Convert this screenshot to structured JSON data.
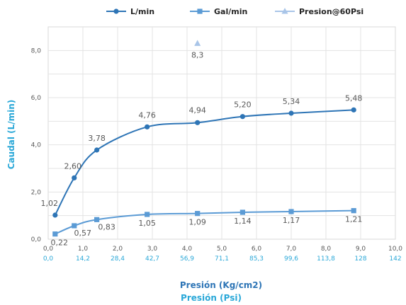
{
  "chart_data": {
    "type": "line",
    "legend": [
      "L/min",
      "Gal/min",
      "Presion@60Psi"
    ],
    "legend_position": "top",
    "xlabel": "Presión (Kg/cm2)",
    "xlabel2": "Presión (Psi)",
    "ylabel": "Caudal (L/min)",
    "xlim": [
      0,
      10
    ],
    "ylim": [
      0,
      9
    ],
    "grid": true,
    "x_ticks": [
      "0,0",
      "1,0",
      "2,0",
      "3,0",
      "4,0",
      "5,0",
      "6,0",
      "7,0",
      "8,0",
      "9,0",
      "10,0"
    ],
    "x2_ticks": [
      "0,0",
      "14,2",
      "28,4",
      "42,7",
      "56,9",
      "71,1",
      "85,3",
      "99,6",
      "113,8",
      "128",
      "142"
    ],
    "y_ticks": [
      "0,0",
      "2,0",
      "4,0",
      "6,0",
      "8,0"
    ],
    "series": [
      {
        "name": "L/min",
        "color": "#2e75b6",
        "marker": "circle",
        "x": [
          0.2,
          0.75,
          1.4,
          2.85,
          4.3,
          5.6,
          7.0,
          8.8
        ],
        "values": [
          1.02,
          2.6,
          3.78,
          4.76,
          4.94,
          5.2,
          5.34,
          5.48
        ],
        "labels": [
          "1,02",
          "2,60",
          "3,78",
          "4,76",
          "4,94",
          "5,20",
          "5,34",
          "5,48"
        ]
      },
      {
        "name": "Gal/min",
        "color": "#5b9bd5",
        "marker": "square",
        "x": [
          0.2,
          0.75,
          1.4,
          2.85,
          4.3,
          5.6,
          7.0,
          8.8
        ],
        "values": [
          0.22,
          0.57,
          0.83,
          1.05,
          1.09,
          1.14,
          1.17,
          1.21
        ],
        "labels": [
          "0,22",
          "0,57",
          "0,83",
          "1,05",
          "1,09",
          "1,14",
          "1,17",
          "1,21"
        ]
      },
      {
        "name": "Presion@60Psi",
        "color": "#a9c5e8",
        "marker": "triangle",
        "x": [
          4.3
        ],
        "values": [
          8.3
        ],
        "labels": [
          "8,3"
        ]
      }
    ]
  }
}
